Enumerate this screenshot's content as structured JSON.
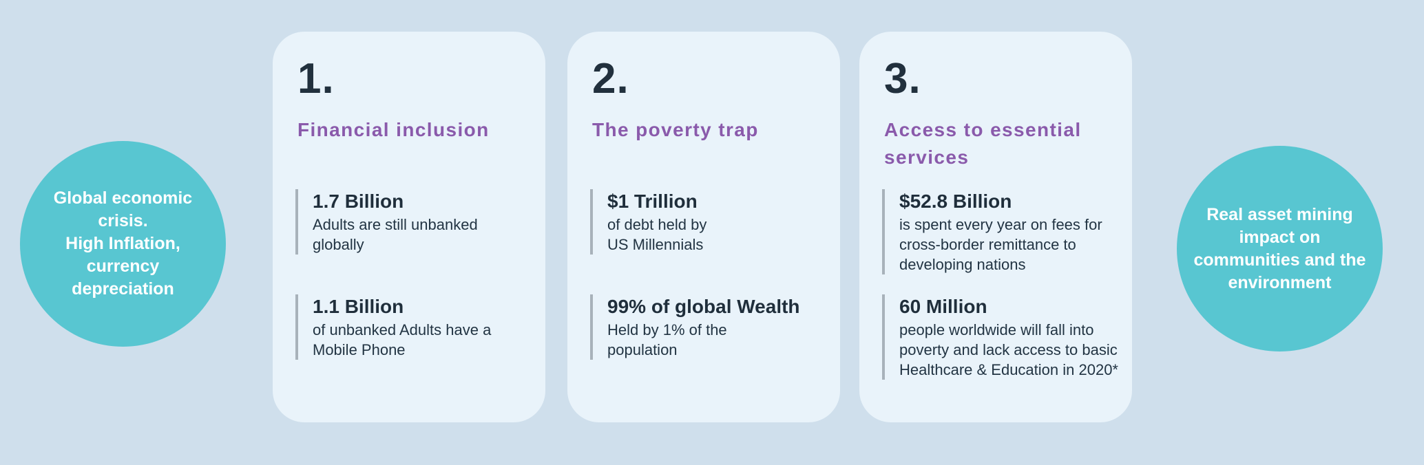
{
  "colors": {
    "background": "#cfdfec",
    "card_background": "#e9f3fa",
    "circle_teal": "#58c6d1",
    "heading_purple": "#8a5aab",
    "text_dark_navy": "#21303d",
    "stat_bar_gray": "#a8b2ba",
    "circle_text_white": "#ffffff"
  },
  "left_circle": {
    "text": "Global economic\ncrisis.\nHigh Inflation,\ncurrency\ndepreciation"
  },
  "right_circle": {
    "text": "Real asset  mining\nimpact on\ncommunities and the\nenvironment"
  },
  "cards": [
    {
      "number": "1.",
      "title": "Financial inclusion",
      "stats": [
        {
          "value": "1.7 Billion",
          "description": "Adults are still unbanked\nglobally"
        },
        {
          "value": "1.1 Billion",
          "description": "of unbanked Adults have a\nMobile Phone"
        }
      ]
    },
    {
      "number": "2.",
      "title": "The poverty trap",
      "stats": [
        {
          "value": "$1 Trillion",
          "description": "of debt held by\nUS Millennials"
        },
        {
          "value": "99% of global Wealth",
          "description": "Held by 1% of the\npopulation"
        }
      ]
    },
    {
      "number": "3.",
      "title": "Access to essential\nservices",
      "stats": [
        {
          "value": "$52.8 Billion",
          "description": "is spent every year on fees for\ncross-border remittance to\ndeveloping nations"
        },
        {
          "value": "60 Million",
          "description": "people worldwide will fall into\npoverty and lack access to basic\nHealthcare & Education in 2020*"
        }
      ]
    }
  ]
}
